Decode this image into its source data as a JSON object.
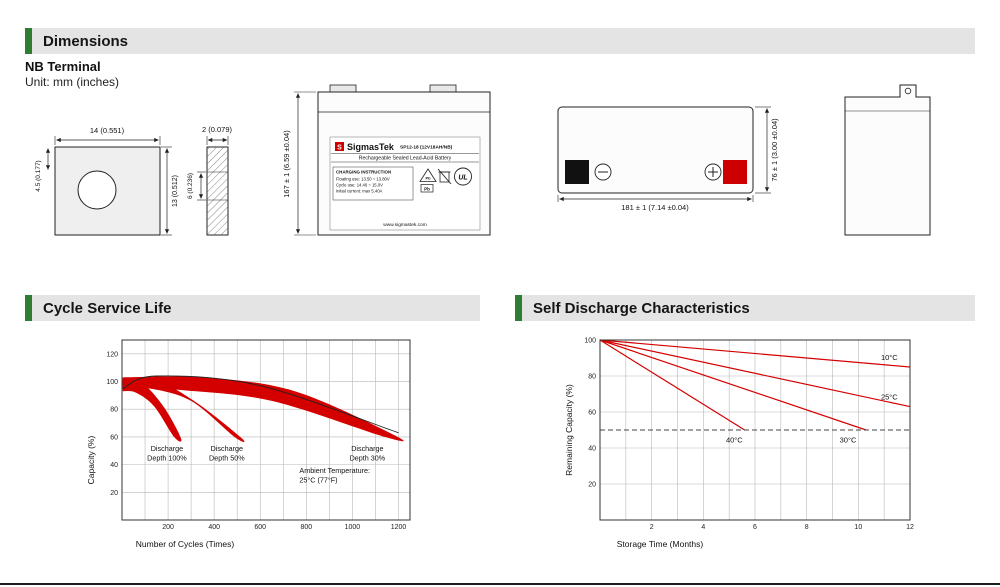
{
  "colors": {
    "accent_green": "#2e7d32",
    "brand_red": "#cc0000",
    "chart_red": "#d40000"
  },
  "sections": {
    "dimensions_title": "Dimensions",
    "cycle_life_title": "Cycle Service Life",
    "self_discharge_title": "Self Discharge Characteristics"
  },
  "dimensions": {
    "terminal_heading": "NB Terminal",
    "unit_note": "Unit: mm (inches)",
    "terminal_front": {
      "width": "14 (0.551)",
      "offset": "4.5 (0.177)",
      "height": "13 (0.512)"
    },
    "terminal_side": {
      "thickness": "2 (0.079)",
      "depth": "6 (0.236)"
    },
    "front_view": {
      "height": "167 ± 1 (6.59 ±0.04)"
    },
    "top_view": {
      "width": "181 ± 1 (7.14 ±0.04)",
      "depth": "76 ± 1 (3.00 ±0.04)"
    },
    "label": {
      "logo_letter": "S",
      "brand": "SigmasTek",
      "model": "SP12-18 (12V18AH/NB)",
      "battery_type": "Rechargeable Sealed Lead-Acid Battery",
      "charging_title": "CHARGING INSTRUCTION",
      "charging_line1": "Floating use: 13.50 ~ 13.80V",
      "charging_line2": "Cycle use: 14.40 ~ 15.0V",
      "charging_line3": "Initial current: max 5.40A",
      "pb_label": "Pb",
      "ul_label": "UL",
      "website": "www.sigmastek.com"
    }
  },
  "chart_data": [
    {
      "id": "cycle-life",
      "type": "area",
      "title": "Cycle Service Life",
      "xlabel": "Number of Cycles (Times)",
      "ylabel": "Capacity (%)",
      "xlim": [
        0,
        1250
      ],
      "ylim": [
        0,
        130
      ],
      "xgrid": 100,
      "ygrid": 20,
      "xticks": [
        200,
        400,
        600,
        800,
        1000,
        1200
      ],
      "yticks": [
        20,
        40,
        60,
        80,
        100,
        120
      ],
      "accent": "#d40000",
      "bands": [
        {
          "name": "Discharge Depth 100%",
          "ring": [
            [
              3,
              101
            ],
            [
              80,
              100
            ],
            [
              180,
              82
            ],
            [
              256,
              59
            ],
            [
              226,
              60
            ],
            [
              140,
              82
            ],
            [
              60,
              92
            ],
            [
              3,
              93
            ]
          ]
        },
        {
          "name": "Discharge Depth 50%",
          "ring": [
            [
              3,
              102
            ],
            [
              150,
              101
            ],
            [
              330,
              84
            ],
            [
              520,
              59
            ],
            [
              488,
              60
            ],
            [
              300,
              86
            ],
            [
              120,
              95
            ],
            [
              3,
              95
            ]
          ]
        },
        {
          "name": "Discharge Depth 30%",
          "ring": [
            [
              3,
              103
            ],
            [
              350,
              103
            ],
            [
              750,
              93
            ],
            [
              1185,
              61
            ],
            [
              1140,
              60
            ],
            [
              650,
              86
            ],
            [
              250,
              94
            ],
            [
              3,
              97
            ]
          ]
        }
      ],
      "outline": [
        [
          3,
          95
        ],
        [
          150,
          104
        ],
        [
          600,
          97
        ],
        [
          1200,
          63
        ]
      ],
      "annotations": [
        {
          "lines": [
            "Discharge",
            "Depth 100%"
          ],
          "x": 195,
          "y": 50
        },
        {
          "lines": [
            "Discharge",
            "Depth 50%"
          ],
          "x": 455,
          "y": 50
        },
        {
          "lines": [
            "Discharge",
            "Depth 30%"
          ],
          "x": 1065,
          "y": 50
        },
        {
          "lines": [
            "Ambient Temperature:",
            "25°C (77°F)"
          ],
          "x": 770,
          "y": 34,
          "anchor": "start"
        }
      ],
      "layout": {
        "xlabel_x": 160,
        "ylabel_dy": 30,
        "legend": "none",
        "grid": "on"
      }
    },
    {
      "id": "self-discharge",
      "type": "line",
      "title": "Self Discharge Characteristics",
      "xlabel": "Storage Time (Months)",
      "ylabel": "Remaining Capacity (%)",
      "xlim": [
        0,
        12
      ],
      "ylim": [
        0,
        100
      ],
      "xgrid": 1,
      "ygrid": 20,
      "xticks": [
        2,
        4,
        6,
        8,
        10,
        12
      ],
      "yticks": [
        20,
        40,
        60,
        80,
        100
      ],
      "accent": "#d40000",
      "series": [
        {
          "name": "10°C",
          "points": [
            [
              0,
              100
            ],
            [
              12,
              85
            ]
          ],
          "label_at": [
            11.2,
            89
          ]
        },
        {
          "name": "25°C",
          "points": [
            [
              0,
              100
            ],
            [
              12,
              63
            ]
          ],
          "label_at": [
            11.2,
            67
          ]
        },
        {
          "name": "30°C",
          "points": [
            [
              0,
              100
            ],
            [
              10.3,
              50
            ]
          ],
          "label_at": [
            9.6,
            43
          ]
        },
        {
          "name": "40°C",
          "points": [
            [
              0,
              100
            ],
            [
              5.6,
              50
            ]
          ],
          "label_at": [
            5.2,
            43
          ]
        }
      ],
      "ref_line": {
        "y": 50,
        "style": "dashed"
      },
      "layout": {
        "xlabel_x": 150,
        "ylabel_dy": 0,
        "legend": "inline-labels",
        "grid": "on"
      }
    }
  ]
}
